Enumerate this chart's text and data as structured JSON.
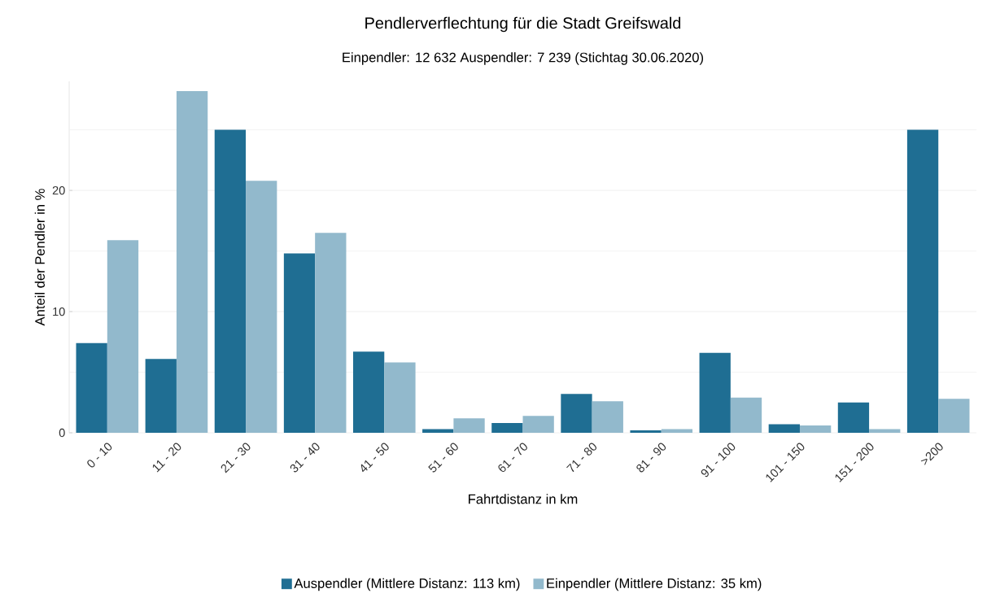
{
  "chart_data": {
    "type": "bar",
    "title": "Pendlerverflechtung für die Stadt Greifswald",
    "subtitle": "Einpendler: 12 632 Auspendler: 7 239 (Stichtag 30.06.2020)",
    "xlabel": "Fahrtdistanz in km",
    "ylabel": "Anteil der Pendler in %",
    "categories": [
      "0 - 10",
      "11 - 20",
      "21 - 30",
      "31 - 40",
      "41 - 50",
      "51 - 60",
      "61 - 70",
      "71 - 80",
      "81 - 90",
      "91 - 100",
      "101 - 150",
      "151 - 200",
      ">200"
    ],
    "series": [
      {
        "name": "Auspendler (Mittlere Distanz: 113 km)",
        "color": "#1f6e93",
        "values": [
          7.4,
          6.1,
          25.0,
          14.8,
          6.7,
          0.3,
          0.8,
          3.2,
          0.2,
          6.6,
          0.7,
          2.5,
          25.0
        ]
      },
      {
        "name": "Einpendler (Mittlere Distanz: 35 km)",
        "color": "#92b9cc",
        "values": [
          15.9,
          28.2,
          20.8,
          16.5,
          5.8,
          1.2,
          1.4,
          2.6,
          0.3,
          2.9,
          0.6,
          0.3,
          2.8
        ]
      }
    ],
    "yticks": [
      0,
      {
        "value": 5,
        "label": null
      },
      10,
      {
        "value": 15,
        "label": null
      },
      20,
      {
        "value": 25,
        "label": null
      }
    ],
    "ylim": [
      0,
      29
    ],
    "grid": "y",
    "legend": "bottom"
  }
}
